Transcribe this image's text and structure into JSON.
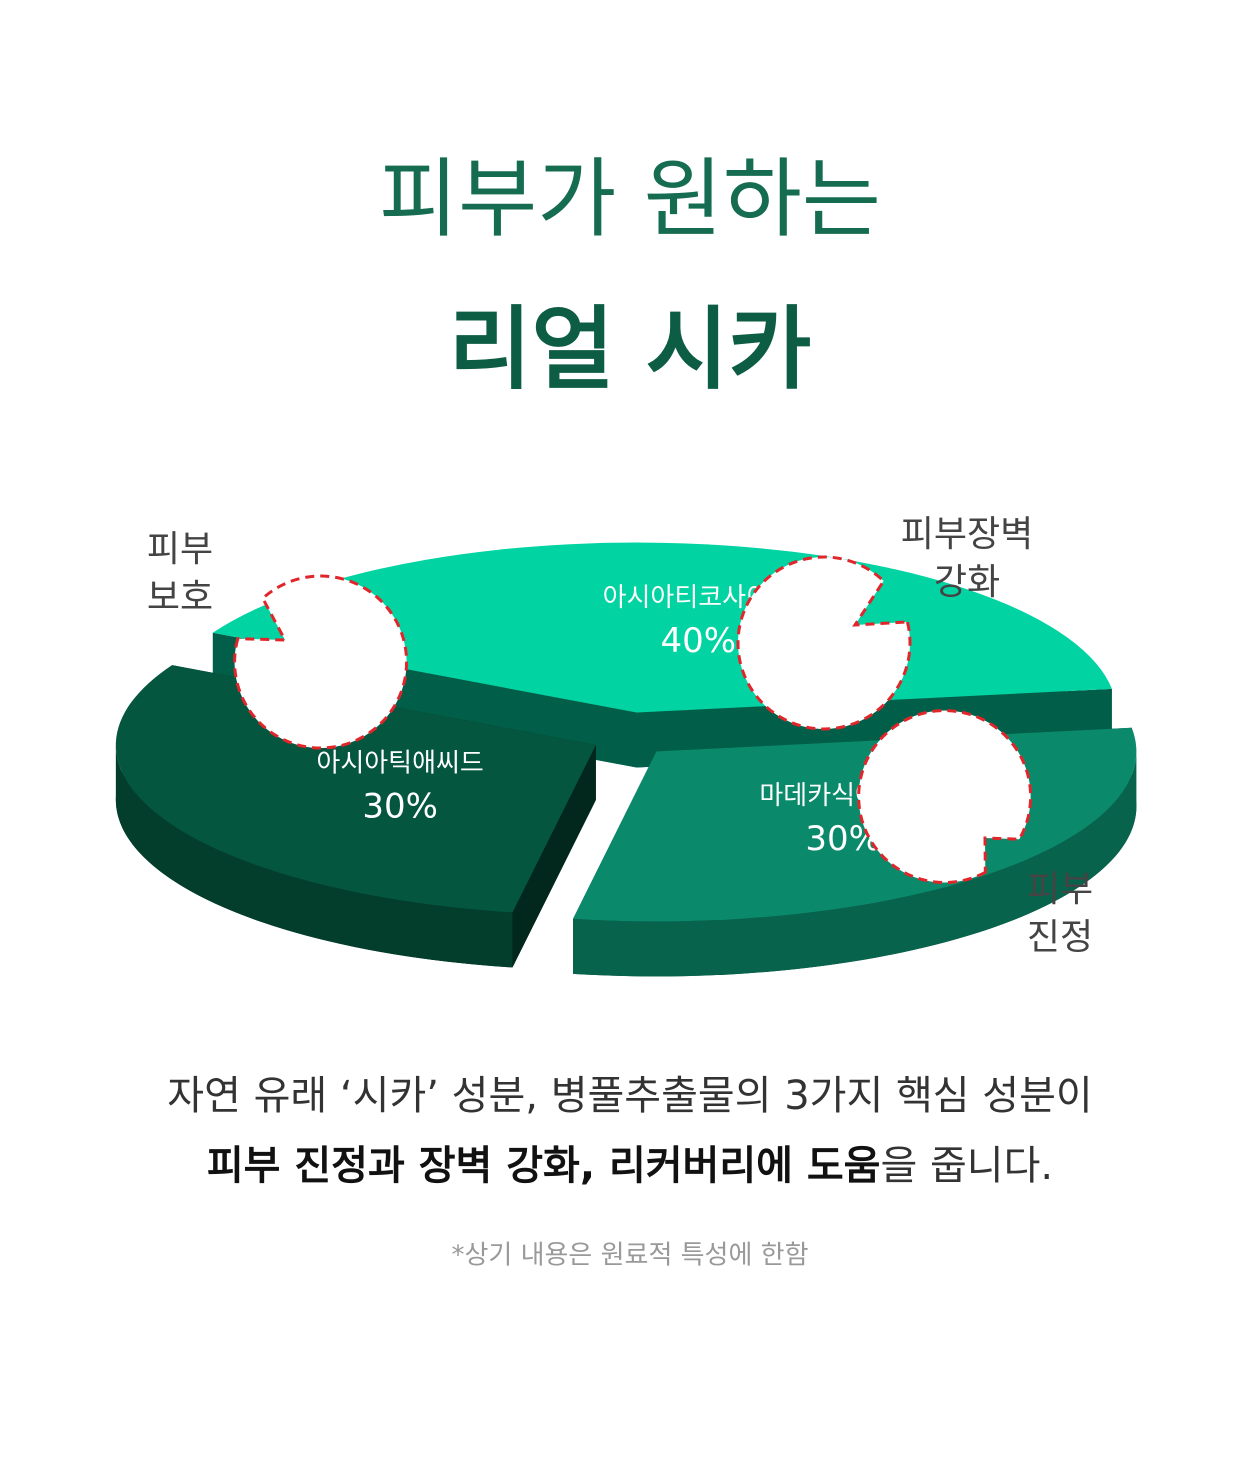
{
  "chart_data": {
    "type": "pie",
    "title": "피부가 원하는",
    "subtitle": "리얼 시카",
    "categories": [
      "마데카식애씨드",
      "아시아틱애씨드",
      "아시아티코사이드"
    ],
    "values": [
      30,
      30,
      40
    ],
    "value_labels": [
      "30%",
      "30%",
      "40%"
    ],
    "colors": [
      "#0b8a6b",
      "#04563f",
      "#02d3a2"
    ],
    "annotations": [
      {
        "lines": [
          "피부",
          "보호"
        ]
      },
      {
        "lines": [
          "피부장벽",
          "강화"
        ]
      },
      {
        "lines": [
          "피부",
          "진정"
        ]
      }
    ],
    "description": [
      [
        {
          "text": "자연 유래 ‘시카’ 성분, 병풀추출물의 3가지 핵심 성분이",
          "bold": false
        }
      ],
      [
        {
          "text": "피부 진정과 장벽 강화, 리커버리에 도움",
          "bold": true
        },
        {
          "text": "을 줍니다.",
          "bold": false
        }
      ]
    ],
    "footnote": "*상기 내용은 원료적 특성에 한함"
  }
}
